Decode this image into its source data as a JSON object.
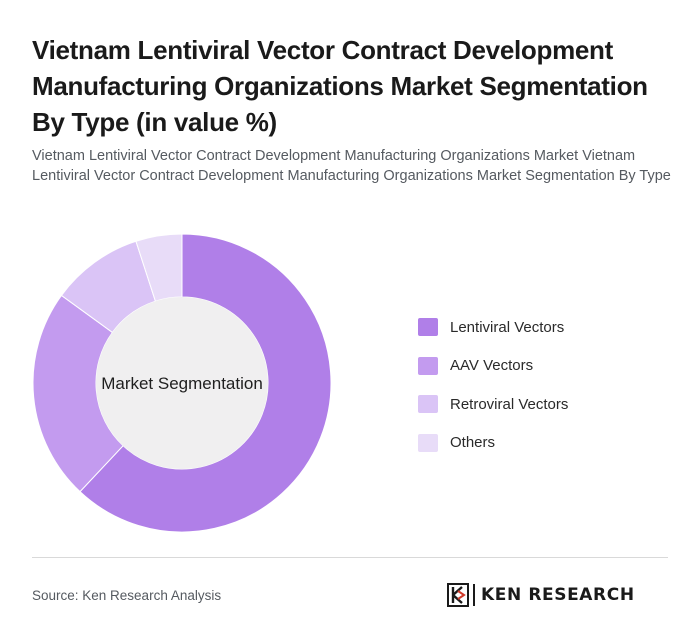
{
  "header": {
    "title": "Vietnam Lentiviral Vector Contract Development Manufacturing Organizations Market Segmentation By Type (in value %)",
    "subtitle": "Vietnam Lentiviral Vector Contract Development Manufacturing Organizations Market Vietnam Lentiviral Vector Contract Development Manufacturing Organizations Market Segmentation By Type"
  },
  "chart_data": {
    "type": "pie",
    "donut": true,
    "center_label": "Market Segmentation",
    "legend_position": "right",
    "categories": [
      "Lentiviral Vectors",
      "AAV Vectors",
      "Retroviral Vectors",
      "Others"
    ],
    "values": [
      62,
      23,
      10,
      5
    ],
    "colors": [
      "#b07fe8",
      "#c39bef",
      "#dac4f6",
      "#e8dcf8"
    ]
  },
  "footer": {
    "source": "Source: Ken Research Analysis",
    "logo_text": "KEN RESEARCH"
  }
}
